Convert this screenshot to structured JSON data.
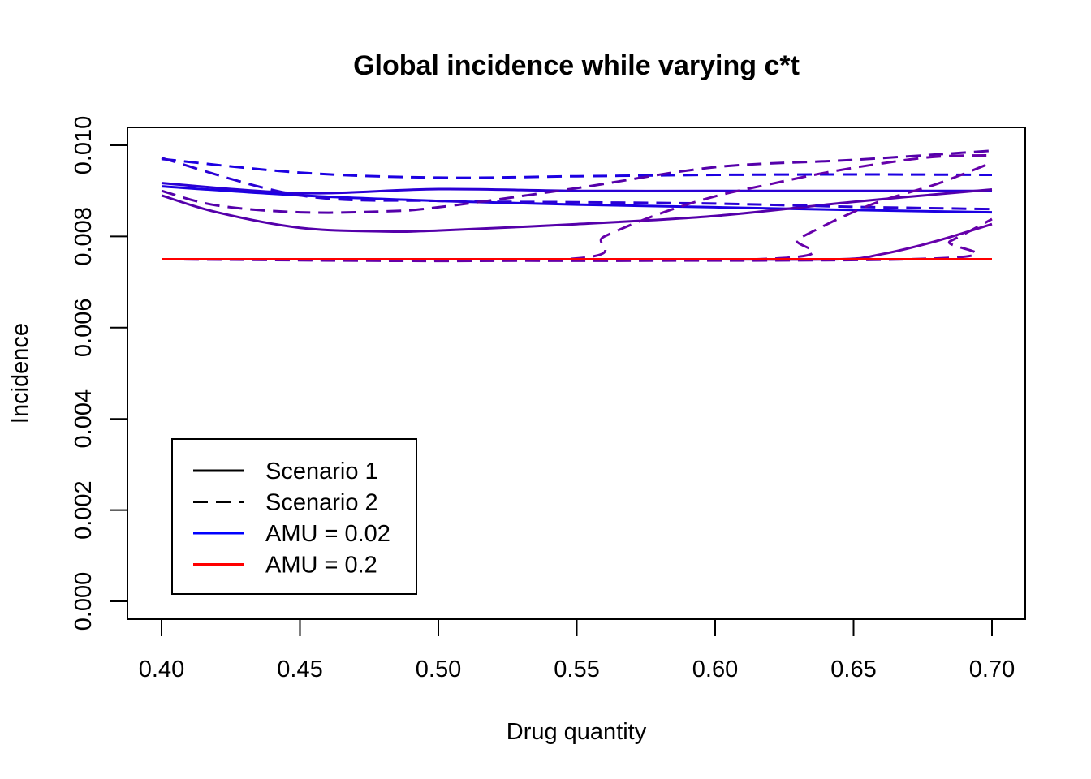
{
  "chart_data": {
    "type": "line",
    "title": "Global incidence while varying c*t",
    "xlabel": "Drug quantity",
    "ylabel": "Incidence",
    "xlim": [
      0.4,
      0.7
    ],
    "ylim": [
      0.0,
      0.01
    ],
    "x_ticks": [
      "0.40",
      "0.45",
      "0.50",
      "0.55",
      "0.60",
      "0.65",
      "0.70"
    ],
    "y_ticks": [
      "0.000",
      "0.002",
      "0.004",
      "0.006",
      "0.008",
      "0.010"
    ],
    "grid": false,
    "legend_position": "bottom-left",
    "legend": [
      {
        "label": "Scenario 1",
        "color": "#000000",
        "dash": "solid"
      },
      {
        "label": "Scenario 2",
        "color": "#000000",
        "dash": "dashed"
      },
      {
        "label": "AMU = 0.02",
        "color": "#0000ff",
        "dash": "solid"
      },
      {
        "label": "AMU = 0.2",
        "color": "#ff0000",
        "dash": "solid"
      }
    ],
    "series": [
      {
        "color": "#2a00d5",
        "dash": "solid",
        "x": [
          0.4,
          0.45,
          0.5,
          0.55,
          0.6,
          0.65,
          0.7
        ],
        "y": [
          0.00917,
          0.00895,
          0.00904,
          0.009,
          0.009,
          0.009,
          0.009
        ]
      },
      {
        "color": "#1c00e2",
        "dash": "solid",
        "x": [
          0.4,
          0.45,
          0.5,
          0.55,
          0.6,
          0.65,
          0.7
        ],
        "y": [
          0.0091,
          0.0089,
          0.00878,
          0.0087,
          0.00864,
          0.00858,
          0.00853
        ]
      },
      {
        "color": "#5500aa",
        "dash": "solid",
        "x": [
          0.4,
          0.42,
          0.45,
          0.48,
          0.5,
          0.55,
          0.6,
          0.65,
          0.7
        ],
        "y": [
          0.0089,
          0.00853,
          0.00819,
          0.00811,
          0.00813,
          0.00827,
          0.00845,
          0.00876,
          0.00903
        ]
      },
      {
        "color": "#6600aa",
        "dash": "solid",
        "x": [
          0.4,
          0.55,
          0.6,
          0.645,
          0.66,
          0.68,
          0.7
        ],
        "y": [
          0.0075,
          0.0075,
          0.0075,
          0.0075,
          0.00761,
          0.0079,
          0.00827
        ]
      },
      {
        "color": "#1c00e2",
        "dash": "dashed",
        "x": [
          0.4,
          0.45,
          0.5,
          0.55,
          0.6,
          0.65,
          0.7
        ],
        "y": [
          0.0097,
          0.0094,
          0.00929,
          0.00932,
          0.00935,
          0.00936,
          0.00935
        ]
      },
      {
        "color": "#2a00d5",
        "dash": "dashed",
        "x": [
          0.4,
          0.45,
          0.5,
          0.55,
          0.6,
          0.65,
          0.7
        ],
        "y": [
          0.00972,
          0.0089,
          0.00878,
          0.00875,
          0.00872,
          0.00865,
          0.0086
        ]
      },
      {
        "color": "#5500aa",
        "dash": "dashed",
        "x": [
          0.4,
          0.42,
          0.45,
          0.48,
          0.5,
          0.55,
          0.6,
          0.65,
          0.7
        ],
        "y": [
          0.009,
          0.00868,
          0.00853,
          0.00855,
          0.00864,
          0.00906,
          0.00952,
          0.00968,
          0.00988
        ]
      },
      {
        "color": "#6600aa",
        "dash": "dashed",
        "x": [
          0.4,
          0.545,
          0.56,
          0.58,
          0.6,
          0.62,
          0.64,
          0.66,
          0.68,
          0.7
        ],
        "y": [
          0.0075,
          0.0075,
          0.008,
          0.0085,
          0.00888,
          0.00915,
          0.0094,
          0.0096,
          0.00975,
          0.00978
        ]
      },
      {
        "color": "#6600aa",
        "dash": "dashed",
        "x": [
          0.4,
          0.615,
          0.63,
          0.645,
          0.66,
          0.68,
          0.7
        ],
        "y": [
          0.0075,
          0.0075,
          0.00795,
          0.0084,
          0.00878,
          0.00915,
          0.00962
        ]
      },
      {
        "color": "#6600aa",
        "dash": "dashed",
        "x": [
          0.4,
          0.67,
          0.685,
          0.7
        ],
        "y": [
          0.0075,
          0.0075,
          0.0079,
          0.00838
        ]
      },
      {
        "color": "#ff0000",
        "dash": "solid",
        "x": [
          0.4,
          0.7
        ],
        "y": [
          0.0075,
          0.0075
        ]
      }
    ]
  }
}
